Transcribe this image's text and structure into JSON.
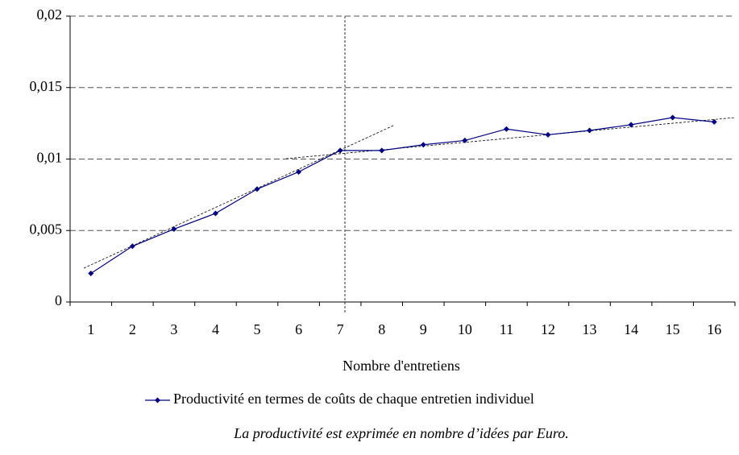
{
  "chart_data": {
    "type": "line",
    "x_label": "Nombre d'entretiens",
    "caption": "La productivité est exprimée en nombre d’idées par Euro.",
    "categories": [
      "1",
      "2",
      "3",
      "4",
      "5",
      "6",
      "7",
      "8",
      "9",
      "10",
      "11",
      "12",
      "13",
      "14",
      "15",
      "16"
    ],
    "series": [
      {
        "name": "Productivité en termes de coûts de chaque entretien individuel",
        "color": "#000080",
        "values": [
          0.002,
          0.0039,
          0.0051,
          0.0062,
          0.0079,
          0.0091,
          0.0106,
          0.0106,
          0.011,
          0.0113,
          0.0121,
          0.0117,
          0.012,
          0.0124,
          0.0129,
          0.0126
        ]
      }
    ],
    "ylim": [
      0,
      0.02
    ],
    "yticks": [
      0,
      {
        "value": 0.005,
        "label": "0,005"
      },
      {
        "value": 0.01,
        "label": "0,01"
      },
      {
        "value": 0.015,
        "label": "0,015"
      },
      {
        "value": 0.02,
        "label": "0,02"
      }
    ],
    "grid": true
  }
}
